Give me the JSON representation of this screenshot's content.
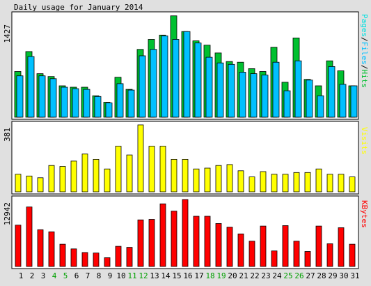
{
  "title": "Daily usage for January 2014",
  "colors": {
    "background": "#e0e0e0",
    "panel": "#ffffff",
    "hits": "#00c030",
    "files": "#00c0ff",
    "pages": "#00e0e0",
    "visits": "#ffff00",
    "kbytes": "#ff0000",
    "weekday_label": "#000000",
    "weekend_label": "#00a000"
  },
  "chart_data": [
    {
      "type": "bar",
      "name": "hits-files-pages",
      "y_max_label": "1427",
      "right_label_parts": [
        "Pages",
        "/",
        "Files",
        "/",
        "Hits"
      ],
      "right_label_colors": [
        "pages",
        "black",
        "files",
        "black",
        "hits"
      ],
      "ylim": [
        0,
        1427
      ],
      "series": [
        {
          "name": "Hits",
          "color_key": "hits",
          "values": [
            640,
            920,
            610,
            570,
            440,
            420,
            420,
            300,
            210,
            560,
            390,
            950,
            1090,
            1150,
            1420,
            1200,
            1070,
            1010,
            900,
            780,
            770,
            680,
            640,
            980,
            490,
            1110,
            530,
            440,
            790,
            650,
            440
          ]
        },
        {
          "name": "Files",
          "color_key": "files",
          "values": [
            580,
            850,
            580,
            540,
            420,
            400,
            390,
            290,
            200,
            470,
            380,
            860,
            950,
            1140,
            1090,
            1200,
            1040,
            840,
            760,
            740,
            630,
            610,
            590,
            770,
            370,
            790,
            520,
            300,
            710,
            460,
            440
          ]
        },
        {
          "name": "Pages",
          "color_key": "pages",
          "values": [
            0,
            0,
            0,
            0,
            0,
            0,
            0,
            0,
            0,
            0,
            0,
            0,
            0,
            0,
            0,
            0,
            0,
            0,
            0,
            0,
            0,
            0,
            0,
            0,
            0,
            0,
            0,
            0,
            0,
            0,
            0
          ]
        }
      ]
    },
    {
      "type": "bar",
      "name": "visits",
      "y_max_label": "381",
      "right_label_parts": [
        "Visits"
      ],
      "right_label_colors": [
        "visits"
      ],
      "ylim": [
        0,
        381
      ],
      "series": [
        {
          "name": "Visits",
          "color_key": "visits",
          "values": [
            100,
            90,
            80,
            150,
            145,
            175,
            215,
            185,
            130,
            260,
            210,
            381,
            260,
            260,
            185,
            185,
            130,
            135,
            150,
            155,
            120,
            85,
            115,
            100,
            100,
            110,
            110,
            130,
            100,
            100,
            85
          ]
        }
      ]
    },
    {
      "type": "bar",
      "name": "kbytes",
      "y_max_label": "12942",
      "right_label_parts": [
        "KBytes"
      ],
      "right_label_colors": [
        "kbytes"
      ],
      "ylim": [
        0,
        12942
      ],
      "series": [
        {
          "name": "KBytes",
          "color_key": "kbytes",
          "values": [
            8000,
            11500,
            7100,
            6700,
            4300,
            3400,
            2700,
            2600,
            1700,
            3900,
            3700,
            9000,
            9100,
            12100,
            10700,
            12942,
            9700,
            9700,
            8300,
            7600,
            6300,
            4900,
            7800,
            3000,
            7900,
            4900,
            2900,
            7800,
            4400,
            7500,
            4300
          ]
        }
      ]
    }
  ],
  "x_labels": [
    "1",
    "2",
    "3",
    "4",
    "5",
    "6",
    "7",
    "8",
    "9",
    "10",
    "11",
    "12",
    "13",
    "14",
    "15",
    "16",
    "17",
    "18",
    "19",
    "20",
    "21",
    "22",
    "23",
    "24",
    "25",
    "26",
    "27",
    "28",
    "29",
    "30",
    "31"
  ],
  "weekend_days": [
    "4",
    "5",
    "11",
    "12",
    "18",
    "19",
    "25",
    "26"
  ]
}
